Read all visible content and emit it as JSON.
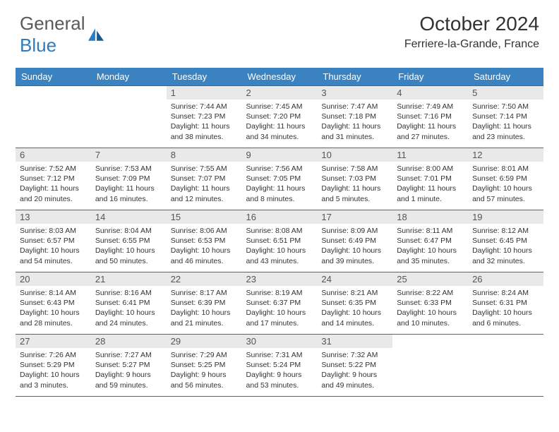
{
  "logo": {
    "text1": "General",
    "text2": "Blue"
  },
  "title": "October 2024",
  "location": "Ferriere-la-Grande, France",
  "colors": {
    "header_bg": "#3b83c0",
    "header_text": "#ffffff",
    "border": "#3b6a93",
    "daynum_bg": "#e9e9e9",
    "logo_gray": "#5a5a5a",
    "logo_blue": "#2f7bbf"
  },
  "day_headers": [
    "Sunday",
    "Monday",
    "Tuesday",
    "Wednesday",
    "Thursday",
    "Friday",
    "Saturday"
  ],
  "first_weekday": 2,
  "days_in_month": 31,
  "days": {
    "1": {
      "sunrise": "7:44 AM",
      "sunset": "7:23 PM",
      "daylight": "11 hours and 38 minutes."
    },
    "2": {
      "sunrise": "7:45 AM",
      "sunset": "7:20 PM",
      "daylight": "11 hours and 34 minutes."
    },
    "3": {
      "sunrise": "7:47 AM",
      "sunset": "7:18 PM",
      "daylight": "11 hours and 31 minutes."
    },
    "4": {
      "sunrise": "7:49 AM",
      "sunset": "7:16 PM",
      "daylight": "11 hours and 27 minutes."
    },
    "5": {
      "sunrise": "7:50 AM",
      "sunset": "7:14 PM",
      "daylight": "11 hours and 23 minutes."
    },
    "6": {
      "sunrise": "7:52 AM",
      "sunset": "7:12 PM",
      "daylight": "11 hours and 20 minutes."
    },
    "7": {
      "sunrise": "7:53 AM",
      "sunset": "7:09 PM",
      "daylight": "11 hours and 16 minutes."
    },
    "8": {
      "sunrise": "7:55 AM",
      "sunset": "7:07 PM",
      "daylight": "11 hours and 12 minutes."
    },
    "9": {
      "sunrise": "7:56 AM",
      "sunset": "7:05 PM",
      "daylight": "11 hours and 8 minutes."
    },
    "10": {
      "sunrise": "7:58 AM",
      "sunset": "7:03 PM",
      "daylight": "11 hours and 5 minutes."
    },
    "11": {
      "sunrise": "8:00 AM",
      "sunset": "7:01 PM",
      "daylight": "11 hours and 1 minute."
    },
    "12": {
      "sunrise": "8:01 AM",
      "sunset": "6:59 PM",
      "daylight": "10 hours and 57 minutes."
    },
    "13": {
      "sunrise": "8:03 AM",
      "sunset": "6:57 PM",
      "daylight": "10 hours and 54 minutes."
    },
    "14": {
      "sunrise": "8:04 AM",
      "sunset": "6:55 PM",
      "daylight": "10 hours and 50 minutes."
    },
    "15": {
      "sunrise": "8:06 AM",
      "sunset": "6:53 PM",
      "daylight": "10 hours and 46 minutes."
    },
    "16": {
      "sunrise": "8:08 AM",
      "sunset": "6:51 PM",
      "daylight": "10 hours and 43 minutes."
    },
    "17": {
      "sunrise": "8:09 AM",
      "sunset": "6:49 PM",
      "daylight": "10 hours and 39 minutes."
    },
    "18": {
      "sunrise": "8:11 AM",
      "sunset": "6:47 PM",
      "daylight": "10 hours and 35 minutes."
    },
    "19": {
      "sunrise": "8:12 AM",
      "sunset": "6:45 PM",
      "daylight": "10 hours and 32 minutes."
    },
    "20": {
      "sunrise": "8:14 AM",
      "sunset": "6:43 PM",
      "daylight": "10 hours and 28 minutes."
    },
    "21": {
      "sunrise": "8:16 AM",
      "sunset": "6:41 PM",
      "daylight": "10 hours and 24 minutes."
    },
    "22": {
      "sunrise": "8:17 AM",
      "sunset": "6:39 PM",
      "daylight": "10 hours and 21 minutes."
    },
    "23": {
      "sunrise": "8:19 AM",
      "sunset": "6:37 PM",
      "daylight": "10 hours and 17 minutes."
    },
    "24": {
      "sunrise": "8:21 AM",
      "sunset": "6:35 PM",
      "daylight": "10 hours and 14 minutes."
    },
    "25": {
      "sunrise": "8:22 AM",
      "sunset": "6:33 PM",
      "daylight": "10 hours and 10 minutes."
    },
    "26": {
      "sunrise": "8:24 AM",
      "sunset": "6:31 PM",
      "daylight": "10 hours and 6 minutes."
    },
    "27": {
      "sunrise": "7:26 AM",
      "sunset": "5:29 PM",
      "daylight": "10 hours and 3 minutes."
    },
    "28": {
      "sunrise": "7:27 AM",
      "sunset": "5:27 PM",
      "daylight": "9 hours and 59 minutes."
    },
    "29": {
      "sunrise": "7:29 AM",
      "sunset": "5:25 PM",
      "daylight": "9 hours and 56 minutes."
    },
    "30": {
      "sunrise": "7:31 AM",
      "sunset": "5:24 PM",
      "daylight": "9 hours and 53 minutes."
    },
    "31": {
      "sunrise": "7:32 AM",
      "sunset": "5:22 PM",
      "daylight": "9 hours and 49 minutes."
    }
  }
}
